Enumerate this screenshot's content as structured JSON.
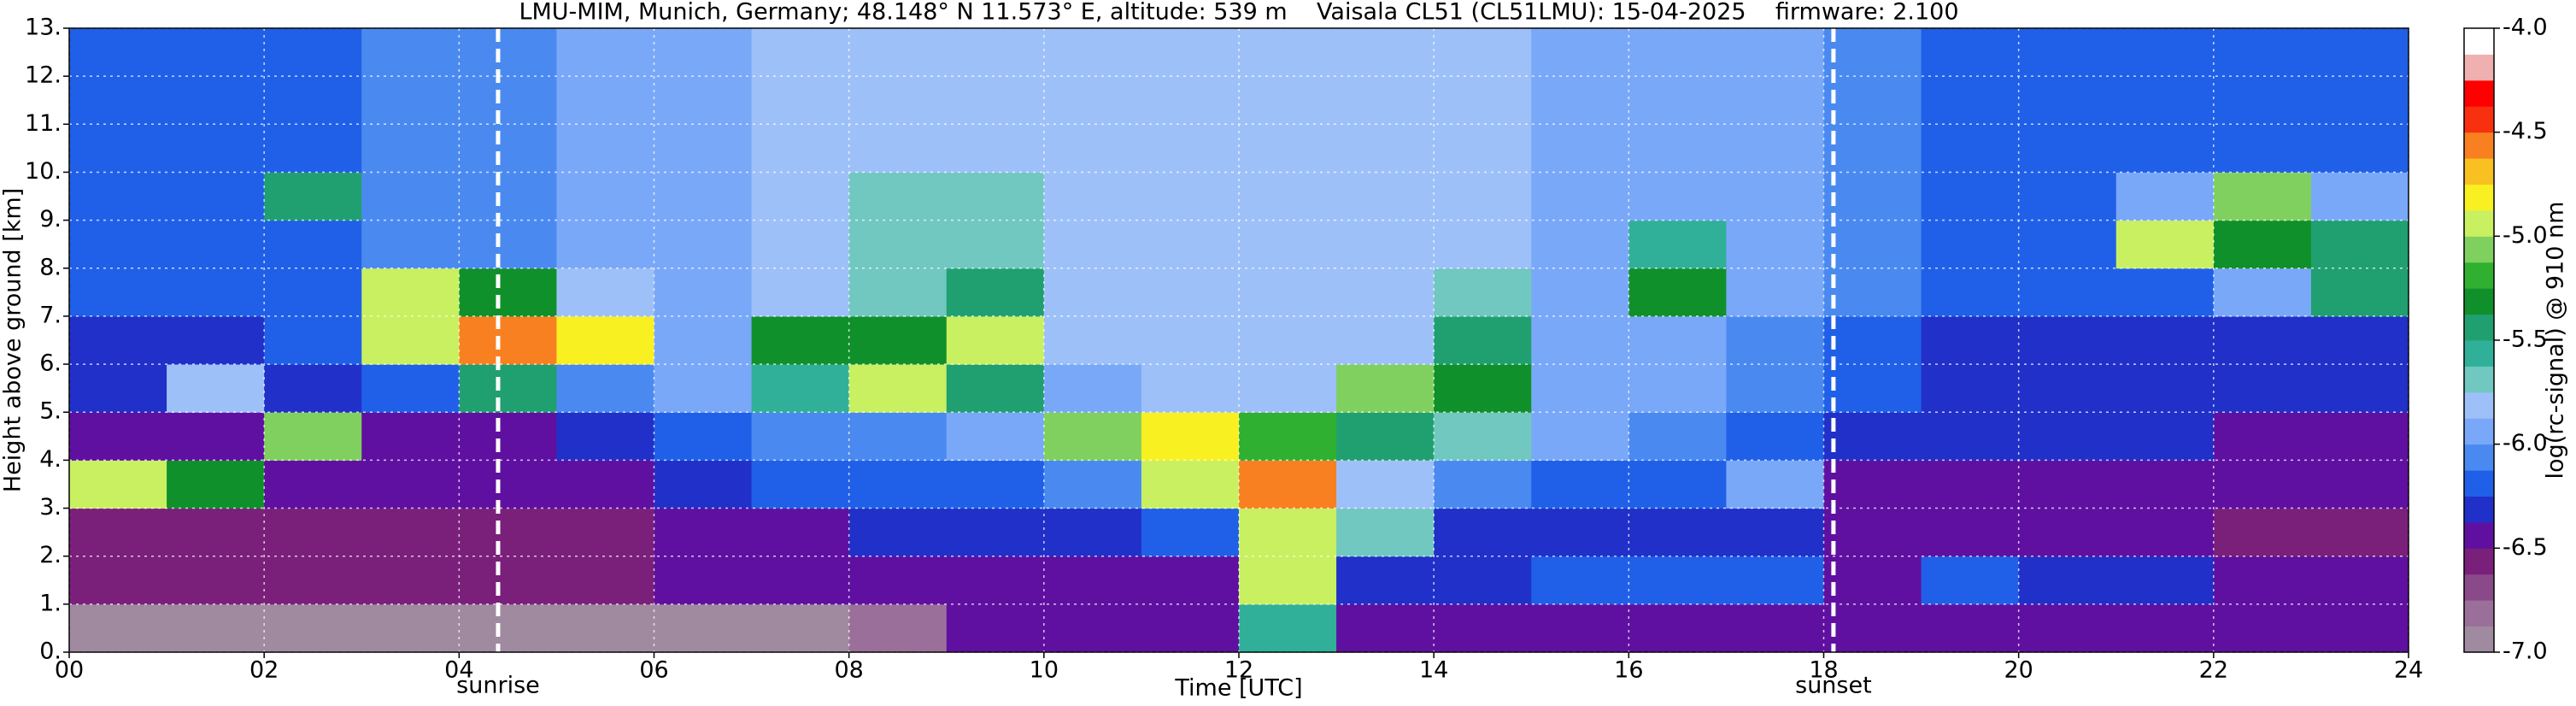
{
  "chart_data": {
    "type": "heatmap",
    "title": "LMU-MIM, Munich, Germany; 48.148° N 11.573° E, altitude: 539 m    Vaisala CL51 (CL51LMU): 15-04-2025    firmware: 2.100",
    "x_label": "Time [UTC]",
    "y_label": "Height above ground [km]",
    "xlim": [
      0,
      24
    ],
    "ylim": [
      0,
      13
    ],
    "xticks": [
      {
        "value": 0,
        "label": "00"
      },
      {
        "value": 2,
        "label": "02"
      },
      {
        "value": 4,
        "label": "04"
      },
      {
        "value": 6,
        "label": "06"
      },
      {
        "value": 8,
        "label": "08"
      },
      10,
      12,
      14,
      16,
      18,
      20,
      22,
      24
    ],
    "yticks": [
      {
        "value": 0,
        "label": "0."
      },
      {
        "value": 1,
        "label": "1."
      },
      {
        "value": 2,
        "label": "2."
      },
      {
        "value": 3,
        "label": "3."
      },
      {
        "value": 4,
        "label": "4."
      },
      {
        "value": 5,
        "label": "5."
      },
      {
        "value": 6,
        "label": "6."
      },
      {
        "value": 7,
        "label": "7."
      },
      {
        "value": 8,
        "label": "8."
      },
      {
        "value": 9,
        "label": "9."
      },
      {
        "value": 10,
        "label": "10."
      },
      {
        "value": 11,
        "label": "11."
      },
      {
        "value": 12,
        "label": "12."
      },
      {
        "value": 13,
        "label": "13."
      }
    ],
    "grid": true,
    "markers": [
      {
        "label": "sunrise",
        "x": 4.4
      },
      {
        "label": "sunset",
        "x": 18.1
      }
    ],
    "x": [
      0.5,
      1.5,
      2.5,
      3.5,
      4.5,
      5.5,
      6.5,
      7.5,
      8.5,
      9.5,
      10.5,
      11.5,
      12.5,
      13.5,
      14.5,
      15.5,
      16.5,
      17.5,
      18.5,
      19.5,
      20.5,
      21.5,
      22.5,
      23.5
    ],
    "y": [
      0.5,
      1.5,
      2.5,
      3.5,
      4.5,
      5.5,
      6.5,
      7.5,
      8.5,
      9.5,
      10.5,
      11.5,
      12.5
    ],
    "z": [
      [
        -6.9,
        -6.9,
        -6.9,
        -6.9,
        -6.9,
        -6.9,
        -6.9,
        -6.9,
        -6.8,
        -6.5,
        -6.5,
        -6.4,
        -5.6,
        -6.4,
        -6.5,
        -6.5,
        -6.5,
        -6.5,
        -6.5,
        -6.4,
        -6.4,
        -6.4,
        -6.5,
        -6.5
      ],
      [
        -6.6,
        -6.6,
        -6.6,
        -6.6,
        -6.6,
        -6.6,
        -6.5,
        -6.5,
        -6.4,
        -6.4,
        -6.4,
        -6.4,
        -5.0,
        -6.3,
        -6.3,
        -6.2,
        -6.2,
        -6.2,
        -6.4,
        -6.2,
        -6.3,
        -6.3,
        -6.4,
        -6.4
      ],
      [
        -6.6,
        -6.6,
        -6.6,
        -6.6,
        -6.6,
        -6.6,
        -6.5,
        -6.4,
        -6.3,
        -6.3,
        -6.3,
        -6.2,
        -5.0,
        -5.7,
        -6.3,
        -6.3,
        -6.3,
        -6.3,
        -6.5,
        -6.5,
        -6.5,
        -6.5,
        -6.6,
        -6.6
      ],
      [
        -4.9,
        -5.3,
        -6.5,
        -6.5,
        -6.5,
        -6.4,
        -6.3,
        -6.2,
        -6.2,
        -6.2,
        -6.1,
        -5.0,
        -4.6,
        -5.8,
        -6.1,
        -6.2,
        -6.2,
        -5.9,
        -6.4,
        -6.4,
        -6.4,
        -6.4,
        -6.5,
        -6.5
      ],
      [
        -6.4,
        -6.4,
        -5.1,
        -6.4,
        -6.4,
        -6.3,
        -6.2,
        -6.1,
        -6.1,
        -6.0,
        -5.1,
        -4.8,
        -5.2,
        -5.4,
        -5.7,
        -6.0,
        -6.1,
        -6.2,
        -6.3,
        -6.3,
        -6.3,
        -6.3,
        -6.4,
        -6.4
      ],
      [
        -6.3,
        -5.8,
        -6.3,
        -6.2,
        -5.4,
        -6.1,
        -6.0,
        -5.6,
        -4.9,
        -5.5,
        -5.9,
        -5.8,
        -5.8,
        -5.1,
        -5.3,
        -5.9,
        -6.0,
        -6.1,
        -6.2,
        -6.3,
        -6.3,
        -6.3,
        -6.3,
        -6.3
      ],
      [
        -6.3,
        -6.3,
        -6.2,
        -5.0,
        -4.6,
        -4.8,
        -6.0,
        -5.3,
        -5.3,
        -4.9,
        -5.8,
        -5.8,
        -5.8,
        -5.8,
        -5.4,
        -5.9,
        -6.0,
        -6.1,
        -6.2,
        -6.3,
        -6.3,
        -6.3,
        -6.3,
        -6.3
      ],
      [
        -6.2,
        -6.2,
        -6.2,
        -5.0,
        -5.3,
        -5.8,
        -6.0,
        -5.8,
        -5.7,
        -5.5,
        -5.8,
        -5.8,
        -5.8,
        -5.8,
        -5.7,
        -5.9,
        -5.3,
        -6.0,
        -6.1,
        -6.2,
        -6.2,
        -6.2,
        -6.0,
        -5.4
      ],
      [
        -6.2,
        -6.2,
        -6.2,
        -6.1,
        -6.1,
        -6.0,
        -5.9,
        -5.8,
        -5.7,
        -5.7,
        -5.8,
        -5.8,
        -5.8,
        -5.8,
        -5.8,
        -5.9,
        -5.6,
        -6.0,
        -6.1,
        -6.2,
        -6.2,
        -5.0,
        -5.3,
        -5.4
      ],
      [
        -6.2,
        -6.2,
        -5.4,
        -6.1,
        -6.1,
        -6.0,
        -5.9,
        -5.8,
        -5.7,
        -5.7,
        -5.8,
        -5.8,
        -5.8,
        -5.8,
        -5.8,
        -5.9,
        -6.0,
        -6.0,
        -6.1,
        -6.2,
        -6.2,
        -6.0,
        -5.1,
        -6.0
      ],
      [
        -6.2,
        -6.2,
        -6.2,
        -6.1,
        -6.1,
        -6.0,
        -5.9,
        -5.8,
        -5.8,
        -5.8,
        -5.8,
        -5.8,
        -5.8,
        -5.8,
        -5.8,
        -5.9,
        -6.0,
        -6.0,
        -6.1,
        -6.2,
        -6.2,
        -6.2,
        -6.2,
        -6.2
      ],
      [
        -6.2,
        -6.2,
        -6.2,
        -6.1,
        -6.1,
        -6.0,
        -5.9,
        -5.8,
        -5.8,
        -5.8,
        -5.8,
        -5.8,
        -5.8,
        -5.8,
        -5.8,
        -5.9,
        -6.0,
        -6.0,
        -6.1,
        -6.2,
        -6.2,
        -6.2,
        -6.2,
        -6.2
      ],
      [
        -6.2,
        -6.2,
        -6.2,
        -6.1,
        -6.1,
        -6.0,
        -5.9,
        -5.8,
        -5.8,
        -5.8,
        -5.8,
        -5.8,
        -5.8,
        -5.8,
        -5.8,
        -5.9,
        -6.0,
        -6.0,
        -6.1,
        -6.2,
        -6.2,
        -6.2,
        -6.2,
        -6.2
      ]
    ],
    "colorbar": {
      "label": "log(rc-signal) @ 910 nm",
      "lim": [
        -7,
        -4
      ],
      "ticks": [
        {
          "value": -4,
          "label": "-4.0"
        },
        -4.5,
        {
          "value": -5,
          "label": "-5.0"
        },
        -5.5,
        {
          "value": -6,
          "label": "-6.0"
        },
        -6.5,
        {
          "value": -7,
          "label": "-7.0"
        }
      ],
      "colors": [
        "#a08aa0",
        "#9a709a",
        "#8a4a8a",
        "#7a207a",
        "#6010a0",
        "#2030c8",
        "#2060e8",
        "#4a8af0",
        "#7aa8f8",
        "#9ec0f8",
        "#70c8c0",
        "#30b098",
        "#20a070",
        "#10902a",
        "#30b030",
        "#80d060",
        "#c8f060",
        "#f8f020",
        "#f8c020",
        "#f88020",
        "#f83010",
        "#ff0000",
        "#f0b0b0",
        "#ffffff"
      ]
    }
  }
}
